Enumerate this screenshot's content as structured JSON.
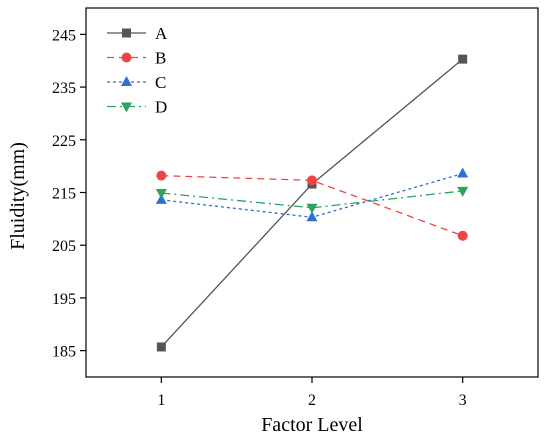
{
  "chart_data": {
    "type": "line",
    "xlabel": "Factor Level",
    "ylabel": "Fluidity(mm)",
    "x": [
      1,
      2,
      3
    ],
    "x_ticks": [
      "1",
      "2",
      "3"
    ],
    "xlim": [
      0.5,
      3.5
    ],
    "y_ticks": [
      "185",
      "195",
      "205",
      "215",
      "225",
      "235",
      "245"
    ],
    "ylim": [
      180,
      250
    ],
    "grid": false,
    "legend_position": "top-left",
    "series": [
      {
        "name": "A",
        "values": [
          185.7,
          216.6,
          240.3
        ],
        "color": "#555555",
        "marker": "square",
        "dash": "solid"
      },
      {
        "name": "B",
        "values": [
          218.2,
          217.3,
          206.8
        ],
        "color": "#ef4444",
        "marker": "circle",
        "dash": "dashed"
      },
      {
        "name": "C",
        "values": [
          213.6,
          210.3,
          218.6
        ],
        "color": "#2f6fd6",
        "marker": "triangle-up",
        "dash": "dotted"
      },
      {
        "name": "D",
        "values": [
          214.9,
          212.1,
          215.3
        ],
        "color": "#2ca35f",
        "marker": "triangle-down",
        "dash": "dash-dot"
      }
    ]
  }
}
